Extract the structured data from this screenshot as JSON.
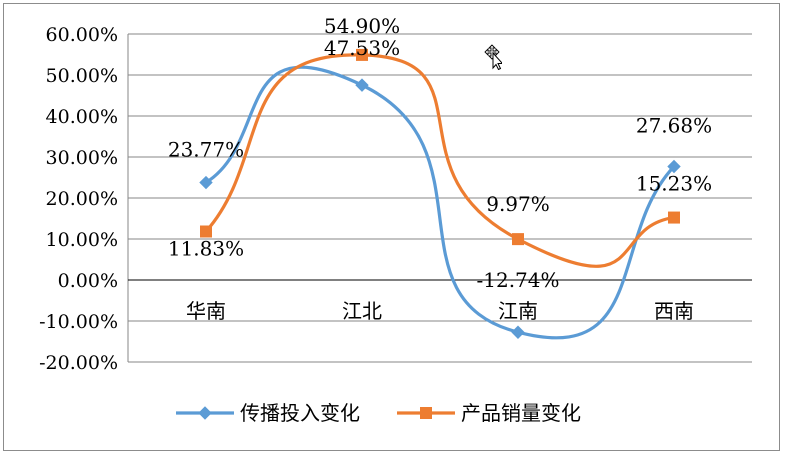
{
  "chart_data": {
    "type": "line",
    "categories": [
      "华南",
      "江北",
      "江南",
      "西南"
    ],
    "series": [
      {
        "name": "传播投入变化",
        "values": [
          23.77,
          47.53,
          -12.74,
          27.68
        ],
        "labels": [
          "23.77%",
          "47.53%",
          "-12.74%",
          "27.68%"
        ],
        "color": "#5b9bd5",
        "marker": "diamond"
      },
      {
        "name": "产品销量变化",
        "values": [
          11.83,
          54.9,
          9.97,
          15.23
        ],
        "labels": [
          "11.83%",
          "54.90%",
          "9.97%",
          "15.23%"
        ],
        "color": "#ed7d31",
        "marker": "square"
      }
    ],
    "ylim": [
      -20,
      60
    ],
    "yticks": [
      60,
      50,
      40,
      30,
      20,
      10,
      0,
      -10,
      -20
    ],
    "ytick_labels": [
      "60.00%",
      "50.00%",
      "40.00%",
      "30.00%",
      "20.00%",
      "10.00%",
      "0.00%",
      "-10.00%",
      "-20.00%"
    ],
    "grid": true,
    "smooth": true,
    "legend_position": "bottom",
    "title": "",
    "xlabel": "",
    "ylabel": ""
  },
  "cursor_icon": "move-cursor-icon"
}
